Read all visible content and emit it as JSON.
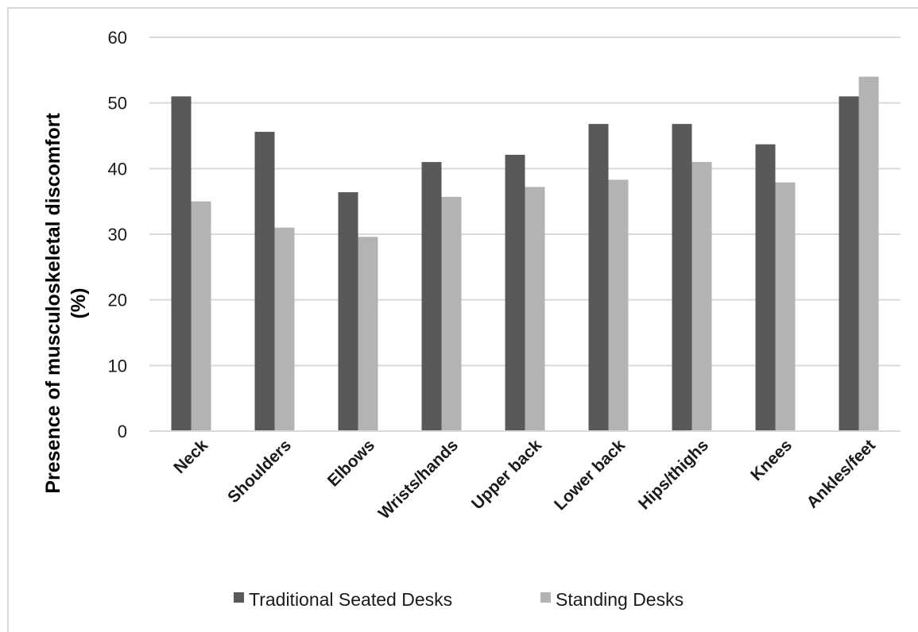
{
  "chart_data": {
    "type": "bar",
    "title": "",
    "xlabel": "",
    "ylabel_lines": [
      "Presence of musculoskeletal discomfort",
      "(%)"
    ],
    "categories": [
      "Neck",
      "Shoulders",
      "Elbows",
      "Wrists/hands",
      "Upper back",
      "Lower back",
      "Hips/thighs",
      "Knees",
      "Ankles/feet"
    ],
    "series": [
      {
        "name": "Traditional Seated Desks",
        "color": "#595959",
        "values": [
          51,
          45.6,
          36.4,
          41,
          42.1,
          46.8,
          46.8,
          43.7,
          51
        ]
      },
      {
        "name": "Standing Desks",
        "color": "#b3b3b3",
        "values": [
          35,
          31,
          29.6,
          35.7,
          37.2,
          38.3,
          41,
          37.9,
          54
        ]
      }
    ],
    "yticks": [
      "0",
      "10",
      "20",
      "30",
      "40",
      "50",
      "60"
    ],
    "ylim": [
      0,
      60
    ],
    "grid": true,
    "legend_position": "bottom"
  }
}
